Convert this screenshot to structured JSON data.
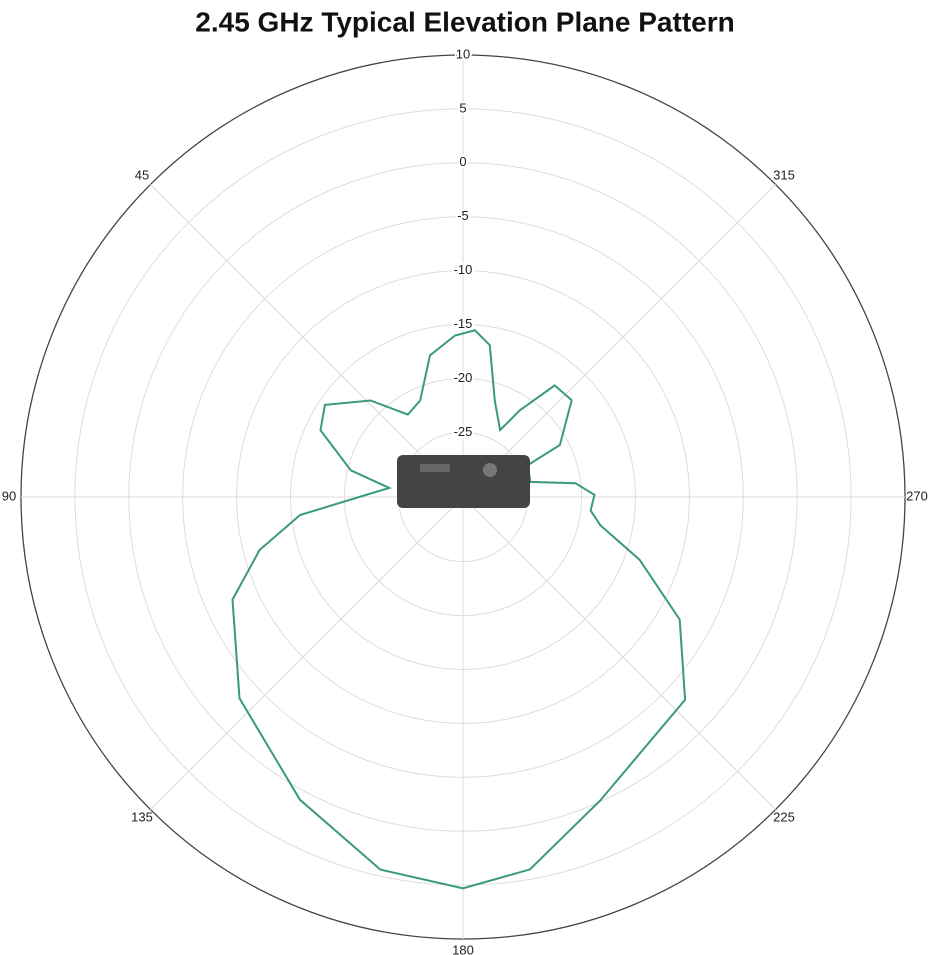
{
  "chart_data": {
    "type": "polar",
    "title": "2.45 GHz Typical Elevation Plane Pattern",
    "x": [
      2.8,
      13.1,
      23.9,
      33.8,
      43.8,
      56.3,
      64.9,
      76.6,
      83,
      96.3,
      104.6,
      114,
      132,
      151.7,
      167.5,
      180,
      190.2,
      204.3,
      227.6,
      240.5,
      250.4,
      258.4,
      264,
      270.9,
      277,
      282.6,
      296.2,
      298.2,
      311.7,
      320.6,
      326.8,
      331,
      341.7,
      350,
      355.9
    ],
    "series": [
      {
        "color": "#3a9a7a",
        "values": [
          -16,
          -17.5,
          -21.2,
          -21.8,
          -18.6,
          -15.6,
          -16.4,
          -20.3,
          -24.1,
          -15.8,
          -11.5,
          -7.6,
          -3.1,
          0.9,
          4.4,
          5.3,
          4.1,
          -0.1,
          -3.1,
          -7.9,
          -13.6,
          -18,
          -19.1,
          -18.8,
          -20.5,
          -24.6,
          -24.3,
          -20.8,
          -17.5,
          -17.6,
          -21.4,
          -23.9,
          -21.6,
          -16.7,
          -15.5
        ]
      }
    ],
    "xticks": [
      45,
      90,
      135,
      180,
      225,
      270,
      315
    ],
    "ylim": [
      -31,
      10
    ],
    "yticks": [
      -25,
      -20,
      -15,
      -10,
      -5,
      0,
      5,
      10
    ],
    "grid": true
  }
}
